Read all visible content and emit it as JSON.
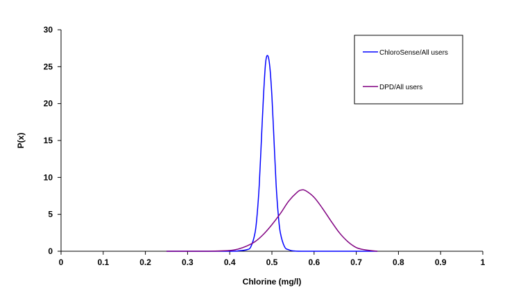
{
  "chart_data": {
    "type": "line",
    "title": "",
    "xlabel": "Chlorine  (mg/l)",
    "ylabel": "P(x)",
    "xlim": [
      0,
      1
    ],
    "ylim": [
      0,
      30
    ],
    "x_ticks": [
      0,
      0.1,
      0.2,
      0.3,
      0.4,
      0.5,
      0.6,
      0.7,
      0.8,
      0.9,
      1
    ],
    "x_tick_labels": [
      "0",
      "0.1",
      "0.2",
      "0.3",
      "0.4",
      "0.5",
      "0.6",
      "0.7",
      "0.8",
      "0.9",
      "1"
    ],
    "y_ticks": [
      0,
      5,
      10,
      15,
      20,
      25,
      30
    ],
    "y_tick_labels": [
      "0",
      "5",
      "10",
      "15",
      "20",
      "25",
      "30"
    ],
    "grid": false,
    "legend_position": "top-right",
    "series": [
      {
        "name": "ChloroSense/All users",
        "color": "#0000ff",
        "x": [
          0.25,
          0.4,
          0.42,
          0.44,
          0.45,
          0.46,
          0.465,
          0.47,
          0.475,
          0.48,
          0.485,
          0.49,
          0.495,
          0.5,
          0.505,
          0.51,
          0.515,
          0.52,
          0.53,
          0.54,
          0.55,
          0.57,
          0.6,
          0.75
        ],
        "y": [
          0,
          0,
          0.05,
          0.2,
          0.6,
          2.5,
          5,
          9,
          15,
          21,
          25.5,
          26.5,
          25,
          21,
          15,
          9,
          5,
          2.5,
          0.6,
          0.2,
          0.05,
          0,
          0,
          0
        ]
      },
      {
        "name": "DPD/All users",
        "color": "#800080",
        "x": [
          0.25,
          0.35,
          0.4,
          0.42,
          0.44,
          0.46,
          0.48,
          0.5,
          0.52,
          0.54,
          0.56,
          0.57,
          0.58,
          0.6,
          0.62,
          0.64,
          0.66,
          0.68,
          0.7,
          0.72,
          0.75
        ],
        "y": [
          0,
          0,
          0.1,
          0.3,
          0.7,
          1.3,
          2.3,
          3.6,
          5.1,
          6.8,
          8.0,
          8.3,
          8.2,
          7.3,
          5.8,
          4.1,
          2.5,
          1.3,
          0.5,
          0.2,
          0
        ]
      }
    ]
  }
}
